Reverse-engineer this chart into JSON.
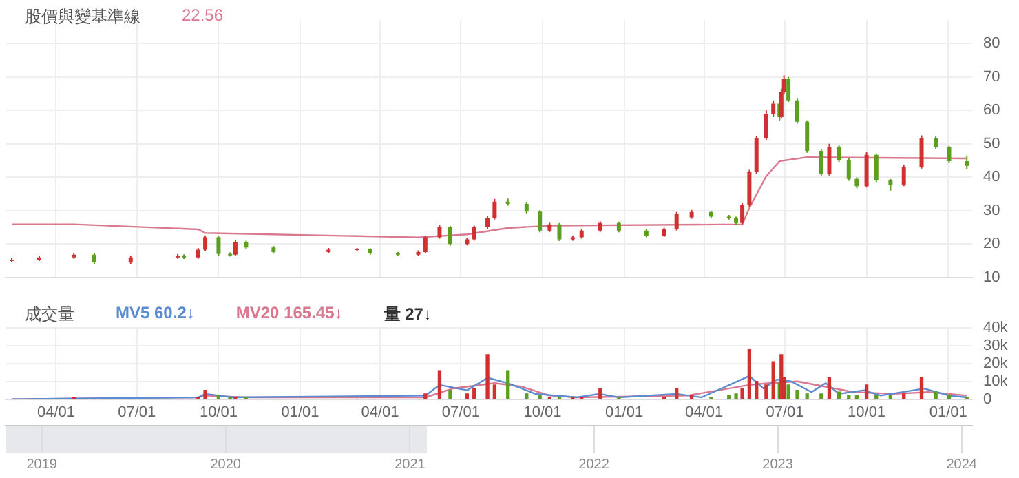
{
  "chart_data": [
    {
      "type": "candlestick",
      "title": "股價與變基準線",
      "annotations": [
        "22.56"
      ],
      "series": [
        {
          "x": [
            "2021-02-10",
            "2021-03-13",
            "2021-04-21",
            "2021-05-14",
            "2021-06-24",
            "2021-08-16",
            "2021-08-23",
            "2021-09-08",
            "2021-09-16",
            "2021-10-01",
            "2021-10-14",
            "2021-10-20",
            "2021-11-01",
            "2021-12-02",
            "2022-02-02",
            "2022-03-06",
            "2022-03-21",
            "2022-04-21",
            "2022-05-14",
            "2022-05-22",
            "2022-06-07",
            "2022-06-19",
            "2022-07-08",
            "2022-07-16",
            "2022-07-31",
            "2022-08-08",
            "2022-08-23",
            "2022-09-13",
            "2022-09-28",
            "2022-10-09",
            "2022-10-20",
            "2022-11-04",
            "2022-11-14",
            "2022-12-05",
            "2022-12-26",
            "2023-01-26",
            "2023-02-15",
            "2023-03-01",
            "2023-03-18",
            "2023-04-09",
            "2023-04-29",
            "2023-05-07",
            "2023-05-14",
            "2023-05-22",
            "2023-05-30",
            "2023-06-10",
            "2023-06-18",
            "2023-06-25",
            "2023-06-27",
            "2023-06-30",
            "2023-07-05",
            "2023-07-15",
            "2023-07-26",
            "2023-08-11",
            "2023-08-20",
            "2023-08-31",
            "2023-09-11",
            "2023-09-20",
            "2023-10-01",
            "2023-10-12",
            "2023-10-28",
            "2023-11-12",
            "2023-12-02",
            "2023-12-18",
            "2024-01-02",
            "2024-01-22"
          ],
          "ohlc": [
            [
              15.0,
              15.8,
              14.6,
              15.3
            ],
            [
              15.3,
              16.5,
              14.9,
              16.0
            ],
            [
              16.0,
              17.3,
              15.6,
              16.8
            ],
            [
              16.8,
              17.2,
              14.0,
              14.5
            ],
            [
              14.5,
              16.5,
              14.1,
              16.0
            ],
            [
              16.0,
              17.0,
              15.6,
              16.5
            ],
            [
              16.5,
              16.9,
              15.5,
              16.0
            ],
            [
              16.0,
              18.8,
              15.6,
              18.3
            ],
            [
              18.3,
              22.6,
              17.9,
              22.0
            ],
            [
              22.0,
              22.4,
              16.5,
              17.0
            ],
            [
              17.0,
              17.5,
              16.3,
              16.8
            ],
            [
              16.8,
              21.1,
              16.4,
              20.6
            ],
            [
              20.6,
              21.0,
              18.5,
              19.0
            ],
            [
              19.0,
              19.4,
              17.1,
              17.6
            ],
            [
              17.6,
              18.8,
              17.2,
              18.3
            ],
            [
              18.3,
              18.8,
              17.8,
              18.6
            ],
            [
              18.6,
              18.7,
              16.8,
              17.2
            ],
            [
              17.2,
              17.6,
              16.4,
              16.8
            ],
            [
              16.8,
              18.1,
              16.4,
              17.6
            ],
            [
              17.6,
              22.5,
              17.2,
              22.0
            ],
            [
              22.0,
              25.6,
              21.6,
              25.0
            ],
            [
              25.0,
              25.4,
              19.5,
              20.0
            ],
            [
              20.0,
              21.9,
              19.6,
              21.4
            ],
            [
              21.4,
              25.5,
              21.0,
              25.0
            ],
            [
              25.0,
              28.3,
              24.6,
              27.8
            ],
            [
              27.8,
              33.5,
              27.4,
              32.7
            ],
            [
              32.7,
              33.6,
              31.5,
              32.0
            ],
            [
              32.0,
              32.4,
              29.2,
              29.7
            ],
            [
              29.7,
              30.1,
              23.5,
              24.0
            ],
            [
              24.0,
              26.4,
              23.6,
              25.9
            ],
            [
              25.9,
              26.3,
              20.9,
              21.4
            ],
            [
              21.4,
              22.5,
              21.0,
              22.0
            ],
            [
              22.0,
              24.5,
              21.6,
              24.0
            ],
            [
              24.0,
              26.8,
              23.6,
              26.3
            ],
            [
              26.3,
              26.7,
              23.5,
              24.0
            ],
            [
              24.0,
              24.4,
              22.0,
              22.5
            ],
            [
              22.5,
              24.9,
              22.1,
              24.4
            ],
            [
              24.4,
              29.6,
              24.0,
              29.0
            ],
            [
              28.0,
              30.2,
              27.6,
              29.6
            ],
            [
              29.6,
              29.8,
              27.7,
              28.2
            ],
            [
              28.2,
              28.7,
              27.3,
              27.8
            ],
            [
              27.8,
              28.2,
              25.8,
              26.3
            ],
            [
              26.3,
              32.2,
              25.9,
              31.6
            ],
            [
              31.6,
              42.2,
              31.2,
              41.5
            ],
            [
              41.5,
              52.4,
              41.1,
              51.7
            ],
            [
              51.7,
              60.0,
              51.2,
              59.0
            ],
            [
              59.0,
              63.0,
              58.0,
              62.0
            ],
            [
              62.0,
              63.5,
              57.0,
              58.0
            ],
            [
              58.0,
              66.5,
              57.5,
              65.5
            ],
            [
              65.5,
              70.5,
              65.0,
              69.5
            ],
            [
              69.5,
              70.0,
              62.5,
              63.0
            ],
            [
              63.0,
              63.5,
              56.0,
              56.6
            ],
            [
              56.6,
              57.0,
              47.3,
              47.9
            ],
            [
              47.9,
              48.3,
              40.4,
              41.0
            ],
            [
              41.0,
              50.0,
              40.5,
              49.0
            ],
            [
              49.0,
              49.5,
              44.6,
              45.2
            ],
            [
              45.2,
              45.6,
              38.9,
              39.5
            ],
            [
              39.5,
              40.0,
              36.7,
              37.3
            ],
            [
              37.3,
              47.5,
              36.9,
              46.7
            ],
            [
              46.7,
              47.1,
              38.5,
              39.0
            ],
            [
              39.0,
              39.5,
              36.0,
              37.7
            ],
            [
              37.7,
              43.6,
              37.3,
              43.0
            ],
            [
              43.0,
              52.5,
              42.6,
              51.7
            ],
            [
              51.7,
              52.2,
              48.5,
              49.0
            ],
            [
              49.0,
              49.4,
              44.2,
              44.8
            ],
            [
              44.8,
              46.5,
              42.5,
              43.4
            ]
          ],
          "colors": [
            "#d0302f",
            "#d0302f",
            "#d0302f",
            "#5c9f1f",
            "#d0302f",
            "#d0302f",
            "#5c9f1f",
            "#d0302f",
            "#d0302f",
            "#5c9f1f",
            "#5c9f1f",
            "#d0302f",
            "#5c9f1f",
            "#5c9f1f",
            "#d0302f",
            "#d0302f",
            "#5c9f1f",
            "#5c9f1f",
            "#d0302f",
            "#d0302f",
            "#d0302f",
            "#5c9f1f",
            "#d0302f",
            "#d0302f",
            "#d0302f",
            "#d0302f",
            "#5c9f1f",
            "#5c9f1f",
            "#5c9f1f",
            "#d0302f",
            "#5c9f1f",
            "#d0302f",
            "#d0302f",
            "#d0302f",
            "#5c9f1f",
            "#5c9f1f",
            "#d0302f",
            "#d0302f",
            "#d0302f",
            "#5c9f1f",
            "#5c9f1f",
            "#5c9f1f",
            "#d0302f",
            "#d0302f",
            "#d0302f",
            "#d0302f",
            "#d0302f",
            "#5c9f1f",
            "#d0302f",
            "#d0302f",
            "#5c9f1f",
            "#5c9f1f",
            "#5c9f1f",
            "#5c9f1f",
            "#d0302f",
            "#5c9f1f",
            "#5c9f1f",
            "#5c9f1f",
            "#d0302f",
            "#5c9f1f",
            "#5c9f1f",
            "#d0302f",
            "#d0302f",
            "#5c9f1f",
            "#5c9f1f",
            "#5c9f1f"
          ]
        },
        {
          "type": "line",
          "color": "#d9788f",
          "x": [
            "2021-02-10",
            "2021-04-21",
            "2021-09-08",
            "2021-09-16",
            "2022-05-14",
            "2022-07-08",
            "2022-08-23",
            "2022-10-09",
            "2023-05-14",
            "2023-05-22",
            "2023-06-10",
            "2023-06-25",
            "2023-07-26",
            "2024-01-22"
          ],
          "values": [
            25.9,
            25.9,
            24.4,
            23.3,
            22,
            22.9,
            24.8,
            25.5,
            25.9,
            30.8,
            40.3,
            44.8,
            46,
            45.6
          ]
        }
      ],
      "xlim": [
        "2021-02-03",
        "2024-01-28"
      ],
      "xticks": [
        {
          "value": "2021-04-01",
          "label": null
        },
        {
          "value": "2021-07-01",
          "label": null
        },
        {
          "value": "2021-10-01",
          "label": null
        },
        {
          "value": "2022-01-01",
          "label": null
        },
        {
          "value": "2022-04-01",
          "label": null
        },
        {
          "value": "2022-07-01",
          "label": null
        },
        {
          "value": "2022-10-01",
          "label": null
        },
        {
          "value": "2023-01-01",
          "label": null
        },
        {
          "value": "2023-04-01",
          "label": null
        },
        {
          "value": "2023-07-01",
          "label": null
        },
        {
          "value": "2023-10-01",
          "label": null
        },
        {
          "value": "2024-01-01",
          "label": null
        }
      ],
      "ylim": [
        10,
        87
      ],
      "yticks": [
        10,
        20,
        30,
        40,
        50,
        60,
        70,
        80
      ],
      "grid": true,
      "tick_labels": "y"
    },
    {
      "type": "bar",
      "title": "成交量",
      "legend": "top left",
      "series": [
        {
          "type": "line",
          "name": "MV5 60.2↓",
          "color": "#5b8bd0",
          "x": [
            "2021-02-10",
            "2021-09-08",
            "2021-09-16",
            "2021-10-17",
            "2022-05-22",
            "2022-06-07",
            "2022-07-08",
            "2022-07-31",
            "2022-08-23",
            "2022-09-23",
            "2022-11-09",
            "2022-12-04",
            "2022-12-26",
            "2023-03-01",
            "2023-03-29",
            "2023-05-22",
            "2023-06-07",
            "2023-06-22",
            "2023-07-08",
            "2023-07-31",
            "2023-08-16",
            "2023-08-31",
            "2023-09-28",
            "2023-10-17",
            "2023-12-05",
            "2024-01-02",
            "2024-01-22"
          ],
          "values": [
            0,
            1000,
            3000,
            1000,
            2000,
            8000,
            5000,
            12000,
            9000,
            3000,
            1000,
            3000,
            1000,
            3000,
            1000,
            13000,
            6000,
            11000,
            10000,
            4000,
            9000,
            3000,
            5000,
            2000,
            6000,
            2000,
            1000
          ]
        },
        {
          "type": "line",
          "name": "MV20 165.45↓",
          "color": "#d9788f",
          "x": [
            "2021-02-10",
            "2021-09-08",
            "2021-09-16",
            "2021-11-01",
            "2022-05-22",
            "2022-06-22",
            "2022-08-08",
            "2022-09-08",
            "2022-10-09",
            "2022-11-09",
            "2023-03-13",
            "2023-05-22",
            "2023-06-14",
            "2023-07-15",
            "2023-08-16",
            "2023-09-16",
            "2023-11-01",
            "2023-12-10",
            "2024-01-02",
            "2024-01-22"
          ],
          "values": [
            0,
            1000,
            2000,
            1000,
            1000,
            6000,
            9000,
            7000,
            2000,
            1000,
            2000,
            8000,
            9000,
            10000,
            7000,
            4000,
            3000,
            4000,
            3000,
            2000
          ]
        },
        {
          "name": "量 27↓",
          "x": [
            "2021-02-10",
            "2021-03-13",
            "2021-04-21",
            "2021-05-14",
            "2021-06-24",
            "2021-08-16",
            "2021-08-23",
            "2021-09-08",
            "2021-09-16",
            "2021-10-01",
            "2021-10-14",
            "2021-10-20",
            "2021-11-01",
            "2021-12-02",
            "2022-02-02",
            "2022-03-06",
            "2022-03-21",
            "2022-04-21",
            "2022-05-14",
            "2022-05-22",
            "2022-06-07",
            "2022-06-19",
            "2022-07-08",
            "2022-07-16",
            "2022-07-31",
            "2022-08-08",
            "2022-08-23",
            "2022-09-13",
            "2022-09-28",
            "2022-10-09",
            "2022-10-20",
            "2022-11-04",
            "2022-11-14",
            "2022-12-05",
            "2022-12-26",
            "2023-01-26",
            "2023-02-15",
            "2023-03-01",
            "2023-03-18",
            "2023-04-09",
            "2023-04-29",
            "2023-05-07",
            "2023-05-14",
            "2023-05-22",
            "2023-05-30",
            "2023-06-10",
            "2023-06-18",
            "2023-06-25",
            "2023-06-27",
            "2023-06-30",
            "2023-07-05",
            "2023-07-15",
            "2023-07-26",
            "2023-08-11",
            "2023-08-20",
            "2023-08-31",
            "2023-09-11",
            "2023-09-20",
            "2023-10-01",
            "2023-10-12",
            "2023-10-28",
            "2023-11-12",
            "2023-12-02",
            "2023-12-18",
            "2024-01-02",
            "2024-01-22"
          ],
          "values": [
            0,
            0,
            1000,
            0,
            0,
            0,
            0,
            1000,
            5000,
            2000,
            1000,
            1000,
            1000,
            0,
            0,
            0,
            0,
            0,
            0,
            3000,
            16000,
            5000,
            3000,
            6000,
            25000,
            8000,
            16000,
            3000,
            2000,
            1000,
            1000,
            1000,
            1000,
            6000,
            1000,
            0,
            1000,
            6000,
            2000,
            1000,
            2000,
            3000,
            6000,
            28000,
            10000,
            8000,
            21000,
            9000,
            25000,
            12000,
            8000,
            5000,
            3000,
            3000,
            12000,
            4000,
            2000,
            2000,
            8000,
            2000,
            2000,
            3000,
            12000,
            4000,
            2000,
            1000
          ],
          "colors": [
            "#d0302f",
            "#d0302f",
            "#d0302f",
            "#5c9f1f",
            "#d0302f",
            "#d0302f",
            "#5c9f1f",
            "#d0302f",
            "#d0302f",
            "#5c9f1f",
            "#5c9f1f",
            "#d0302f",
            "#5c9f1f",
            "#5c9f1f",
            "#d0302f",
            "#d0302f",
            "#5c9f1f",
            "#5c9f1f",
            "#d0302f",
            "#d0302f",
            "#d0302f",
            "#5c9f1f",
            "#d0302f",
            "#d0302f",
            "#d0302f",
            "#d0302f",
            "#5c9f1f",
            "#5c9f1f",
            "#5c9f1f",
            "#d0302f",
            "#5c9f1f",
            "#d0302f",
            "#d0302f",
            "#d0302f",
            "#5c9f1f",
            "#5c9f1f",
            "#d0302f",
            "#d0302f",
            "#d0302f",
            "#5c9f1f",
            "#5c9f1f",
            "#5c9f1f",
            "#d0302f",
            "#d0302f",
            "#d0302f",
            "#d0302f",
            "#d0302f",
            "#5c9f1f",
            "#d0302f",
            "#d0302f",
            "#5c9f1f",
            "#5c9f1f",
            "#5c9f1f",
            "#5c9f1f",
            "#d0302f",
            "#5c9f1f",
            "#5c9f1f",
            "#5c9f1f",
            "#d0302f",
            "#5c9f1f",
            "#5c9f1f",
            "#d0302f",
            "#d0302f",
            "#5c9f1f",
            "#5c9f1f",
            "#5c9f1f"
          ]
        }
      ],
      "xlim": [
        "2021-02-03",
        "2024-01-28"
      ],
      "xticks": [
        {
          "value": "2021-04-01",
          "label": "04/01"
        },
        {
          "value": "2021-07-01",
          "label": "07/01"
        },
        {
          "value": "2021-10-01",
          "label": "10/01"
        },
        {
          "value": "2022-01-01",
          "label": "01/01"
        },
        {
          "value": "2022-04-01",
          "label": "04/01"
        },
        {
          "value": "2022-07-01",
          "label": "07/01"
        },
        {
          "value": "2022-10-01",
          "label": "10/01"
        },
        {
          "value": "2023-01-01",
          "label": "01/01"
        },
        {
          "value": "2023-04-01",
          "label": "04/01"
        },
        {
          "value": "2023-07-01",
          "label": "07/01"
        },
        {
          "value": "2023-10-01",
          "label": "10/01"
        },
        {
          "value": "2024-01-01",
          "label": "01/01"
        }
      ],
      "x2lim": [
        "2018-10-21",
        "2024-01-22"
      ],
      "x2ticks": [
        {
          "value": "2019-01-01",
          "label": "2019"
        },
        {
          "value": "2020-01-01",
          "label": "2020"
        },
        {
          "value": "2021-01-01",
          "label": "2021"
        },
        {
          "value": "2022-01-01",
          "label": "2022"
        },
        {
          "value": "2023-01-01",
          "label": "2023"
        },
        {
          "value": "2024-01-01",
          "label": "2024"
        }
      ],
      "ylim": [
        0,
        40000
      ],
      "yticks": [
        0,
        {
          "value": 10000,
          "label": "10k"
        },
        {
          "value": 20000,
          "label": "20k"
        },
        {
          "value": 30000,
          "label": "30k"
        },
        {
          "value": 40000,
          "label": "40k"
        }
      ],
      "grid": true
    }
  ]
}
